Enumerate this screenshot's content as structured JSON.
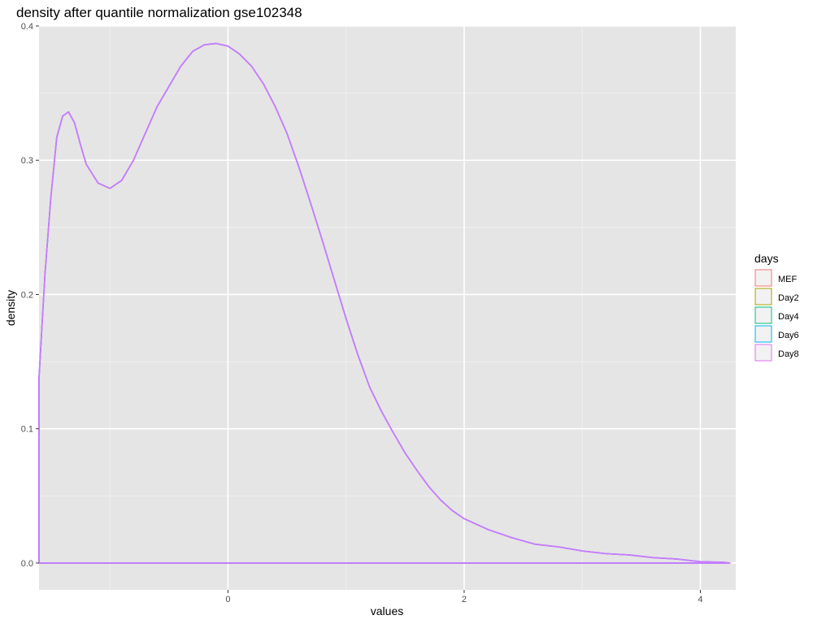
{
  "chart_data": {
    "type": "area",
    "title": "density after quantile normalization gse102348",
    "xlabel": "values",
    "ylabel": "density",
    "xlim": [
      -1.6,
      4.3
    ],
    "ylim": [
      -0.02,
      0.4
    ],
    "x_ticks": [
      0,
      2,
      4
    ],
    "x_tick_labels": [
      "0",
      "2",
      "4"
    ],
    "y_ticks": [
      0.0,
      0.1,
      0.2,
      0.3,
      0.4
    ],
    "y_tick_labels": [
      "0.0",
      "0.1",
      "0.2",
      "0.3",
      "0.4"
    ],
    "grid": true,
    "background": "#e5e5e5",
    "legend": {
      "title": "days",
      "position": "right",
      "entries": [
        {
          "label": "MEF",
          "color": "#f8766d"
        },
        {
          "label": "Day2",
          "color": "#a3a500"
        },
        {
          "label": "Day4",
          "color": "#00bf7d"
        },
        {
          "label": "Day6",
          "color": "#00b0f6"
        },
        {
          "label": "Day8",
          "color": "#e76bf3"
        }
      ]
    },
    "series_x": [
      -1.6,
      -1.55,
      -1.5,
      -1.45,
      -1.4,
      -1.35,
      -1.3,
      -1.25,
      -1.2,
      -1.1,
      -1.0,
      -0.9,
      -0.8,
      -0.7,
      -0.6,
      -0.5,
      -0.4,
      -0.3,
      -0.2,
      -0.1,
      0.0,
      0.1,
      0.2,
      0.3,
      0.4,
      0.5,
      0.6,
      0.7,
      0.8,
      0.9,
      1.0,
      1.1,
      1.2,
      1.3,
      1.4,
      1.5,
      1.6,
      1.7,
      1.8,
      1.9,
      2.0,
      2.2,
      2.4,
      2.6,
      2.8,
      3.0,
      3.2,
      3.4,
      3.6,
      3.8,
      4.0,
      4.2,
      4.25
    ],
    "series_y": [
      0.138,
      0.215,
      0.272,
      0.317,
      0.333,
      0.336,
      0.328,
      0.312,
      0.297,
      0.283,
      0.279,
      0.285,
      0.3,
      0.32,
      0.34,
      0.355,
      0.37,
      0.381,
      0.386,
      0.387,
      0.385,
      0.379,
      0.37,
      0.357,
      0.34,
      0.32,
      0.295,
      0.268,
      0.24,
      0.211,
      0.182,
      0.155,
      0.131,
      0.113,
      0.097,
      0.082,
      0.069,
      0.057,
      0.047,
      0.039,
      0.033,
      0.025,
      0.019,
      0.014,
      0.012,
      0.009,
      0.007,
      0.006,
      0.004,
      0.003,
      0.001,
      0.0005,
      0.0
    ],
    "series": [
      {
        "name": "MEF",
        "color": "#f8766d"
      },
      {
        "name": "Day2",
        "color": "#a3a500"
      },
      {
        "name": "Day4",
        "color": "#00bf7d"
      },
      {
        "name": "Day6",
        "color": "#00b0f6"
      },
      {
        "name": "Day8",
        "color": "#e76bf3"
      }
    ],
    "overlay_line_color": "#c77cff"
  }
}
